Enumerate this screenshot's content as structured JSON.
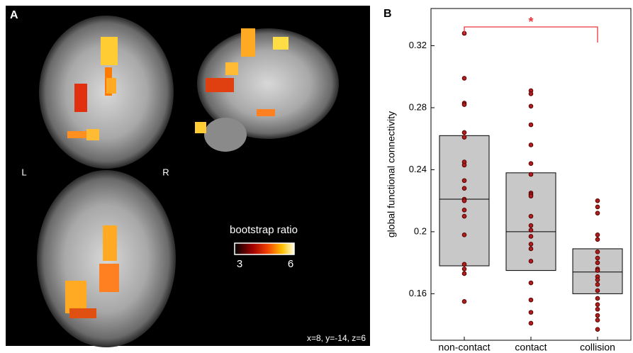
{
  "panel_a": {
    "label": "A",
    "left": "L",
    "right": "R",
    "colorbar_title": "bootstrap ratio",
    "colorbar_ticks": [
      3,
      6
    ],
    "coordinates": "x=8, y=-14, z=6"
  },
  "chart_data": {
    "type": "box",
    "panel_label": "B",
    "ylabel": "global functional connectivity",
    "categories": [
      "non-contact",
      "contact",
      "collision"
    ],
    "q1": [
      0.178,
      0.175,
      0.16
    ],
    "median": [
      0.221,
      0.2,
      0.174
    ],
    "q3": [
      0.262,
      0.238,
      0.189
    ],
    "points": [
      [
        0.328,
        0.299,
        0.283,
        0.282,
        0.264,
        0.261,
        0.245,
        0.243,
        0.233,
        0.228,
        0.221,
        0.22,
        0.214,
        0.21,
        0.198,
        0.179,
        0.176,
        0.173,
        0.155
      ],
      [
        0.291,
        0.289,
        0.281,
        0.269,
        0.256,
        0.244,
        0.237,
        0.225,
        0.224,
        0.223,
        0.21,
        0.204,
        0.201,
        0.197,
        0.192,
        0.189,
        0.181,
        0.167,
        0.156,
        0.148,
        0.141
      ],
      [
        0.22,
        0.216,
        0.212,
        0.198,
        0.195,
        0.187,
        0.183,
        0.18,
        0.176,
        0.175,
        0.171,
        0.169,
        0.166,
        0.162,
        0.157,
        0.153,
        0.15,
        0.146,
        0.143,
        0.137
      ]
    ],
    "significance_label": "*",
    "box_color": "#c8c8c8",
    "point_color": "#b01e1e",
    "significance_color": "#e8383d",
    "ylim": [
      0.13,
      0.344
    ],
    "yticks": [
      0.16,
      0.2,
      0.24,
      0.28,
      0.32
    ]
  }
}
